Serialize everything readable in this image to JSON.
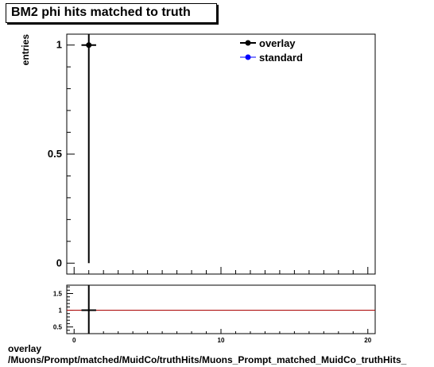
{
  "title": "BM2 phi hits matched to truth",
  "footer": {
    "line1": "overlay",
    "line2": "/Muons/Prompt/matched/MuidCo/truthHits/Muons_Prompt_matched_MuidCo_truthHits_"
  },
  "colors": {
    "overlay": "#000000",
    "standard": "#0000ff",
    "ratio_reference": "#aa0000"
  },
  "chart_data": [
    {
      "type": "scatter",
      "title": "BM2 phi hits matched to truth",
      "xlabel": "",
      "ylabel": "entries",
      "xlim": [
        -0.5,
        20.5
      ],
      "ylim": [
        -0.05,
        1.05
      ],
      "ytick_labels": [
        "0",
        "0.5",
        "1"
      ],
      "legend": {
        "placement": "top-right",
        "entries": [
          "overlay",
          "standard"
        ]
      },
      "series": [
        {
          "name": "overlay",
          "points": [
            {
              "x": 1,
              "y": 1,
              "yerr_low": 1,
              "yerr_high": 1.05,
              "xerr": 0.5
            }
          ]
        },
        {
          "name": "standard",
          "points": [
            {
              "x": 1,
              "y": 1
            }
          ]
        }
      ]
    },
    {
      "type": "scatter",
      "title": "",
      "xlabel": "",
      "ylabel": "",
      "xlim": [
        -0.5,
        20.5
      ],
      "ylim": [
        0.3,
        1.75
      ],
      "ytick_labels": [
        "0.5",
        "1",
        "1.5"
      ],
      "xtick_labels": [
        "0",
        "10",
        "20"
      ],
      "reference_line": 1,
      "series": [
        {
          "name": "ratio",
          "points": [
            {
              "x": 1,
              "y": 1,
              "yerr_low": 1,
              "yerr_high": 1,
              "xerr": 0.5
            }
          ]
        }
      ]
    }
  ]
}
